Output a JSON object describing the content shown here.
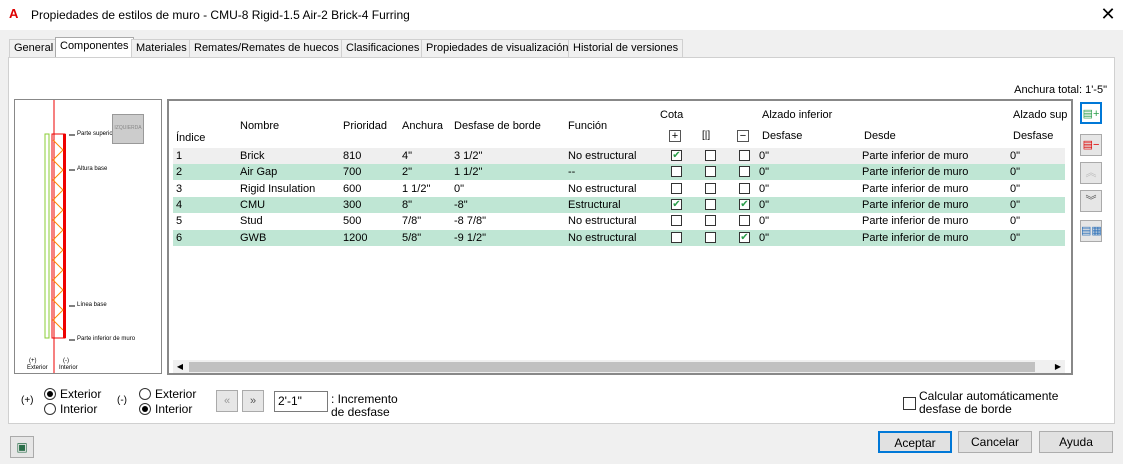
{
  "window": {
    "title": "Propiedades de estilos de muro - CMU-8 Rigid-1.5 Air-2 Brick-4 Furring",
    "app_icon": "A"
  },
  "tabs": [
    "General",
    "Componentes",
    "Materiales",
    "Remates/Remates de huecos",
    "Clasificaciones",
    "Propiedades de visualización",
    "Historial de versiones"
  ],
  "active_tab": "Componentes",
  "total_width": "Anchura total: 1'-5\"",
  "preview": {
    "labels": [
      "Parte superior de muro",
      "Altura base",
      "Línea base",
      "Parte inferior de muro"
    ],
    "exterior": "(+)\nExterior",
    "interior": "(-)\nInterior",
    "exterior_sign": "(+)",
    "exterior_word": "Exterior",
    "interior_sign": "(-)",
    "interior_word": "Interior",
    "view_button": "IZQUIERDA"
  },
  "table": {
    "headers": {
      "index": "Índice",
      "name": "Nombre",
      "priority": "Prioridad",
      "width": "Anchura",
      "edge_offset": "Desfase de borde",
      "function": "Función",
      "dim": "Cota",
      "dim_plus": "+",
      "dim_center": "[|]",
      "dim_minus": "−",
      "bottom_elev": "Alzado inferior",
      "bottom_offset": "Desfase",
      "bottom_from": "Desde",
      "top_elev": "Alzado sup",
      "top_offset": "Desfase"
    },
    "rows": [
      {
        "index": "1",
        "name": "Brick",
        "priority": "810",
        "width": "4\"",
        "edge_offset": "3 1/2\"",
        "function": "No estructural",
        "plus": true,
        "center": false,
        "minus": false,
        "b_offset": "0\"",
        "b_from": "Parte inferior de muro",
        "t_offset": "0\""
      },
      {
        "index": "2",
        "name": "Air Gap",
        "priority": "700",
        "width": "2\"",
        "edge_offset": "1 1/2\"",
        "function": "--",
        "plus": false,
        "center": false,
        "minus": false,
        "b_offset": "0\"",
        "b_from": "Parte inferior de muro",
        "t_offset": "0\""
      },
      {
        "index": "3",
        "name": "Rigid Insulation",
        "priority": "600",
        "width": "1 1/2\"",
        "edge_offset": "0\"",
        "function": "No estructural",
        "plus": false,
        "center": false,
        "minus": false,
        "b_offset": "0\"",
        "b_from": "Parte inferior de muro",
        "t_offset": "0\""
      },
      {
        "index": "4",
        "name": "CMU",
        "priority": "300",
        "width": "8\"",
        "edge_offset": "-8\"",
        "function": "Estructural",
        "plus": true,
        "center": false,
        "minus": true,
        "b_offset": "0\"",
        "b_from": "Parte inferior de muro",
        "t_offset": "0\""
      },
      {
        "index": "5",
        "name": "Stud",
        "priority": "500",
        "width": "7/8\"",
        "edge_offset": "-8 7/8\"",
        "function": "No estructural",
        "plus": false,
        "center": false,
        "minus": false,
        "b_offset": "0\"",
        "b_from": "Parte inferior de muro",
        "t_offset": "0\""
      },
      {
        "index": "6",
        "name": "GWB",
        "priority": "1200",
        "width": "5/8\"",
        "edge_offset": "-9 1/2\"",
        "function": "No estructural",
        "plus": false,
        "center": false,
        "minus": true,
        "b_offset": "0\"",
        "b_from": "Parte inferior de muro",
        "t_offset": "0\""
      }
    ]
  },
  "side_buttons": [
    "add-component-icon",
    "remove-component-icon",
    "move-up-icon",
    "move-down-icon",
    "component-properties-icon"
  ],
  "bottom": {
    "plus_label": "(+)",
    "minus_label": "(-)",
    "exterior": "Exterior",
    "interior": "Interior",
    "plus_selected": "Exterior",
    "minus_selected": "Interior",
    "increment_value": "2'-1\"",
    "increment_label": ": Incremento de desfase",
    "auto_offset": "Calcular automáticamente desfase de borde",
    "auto_offset_checked": false
  },
  "footer": {
    "ok": "Aceptar",
    "cancel": "Cancelar",
    "help": "Ayuda"
  },
  "colors": {
    "row_alt": "#bfe6d4",
    "row_selected": "#efefef",
    "check": "#2a9d4a",
    "accent": "#0078d7"
  }
}
